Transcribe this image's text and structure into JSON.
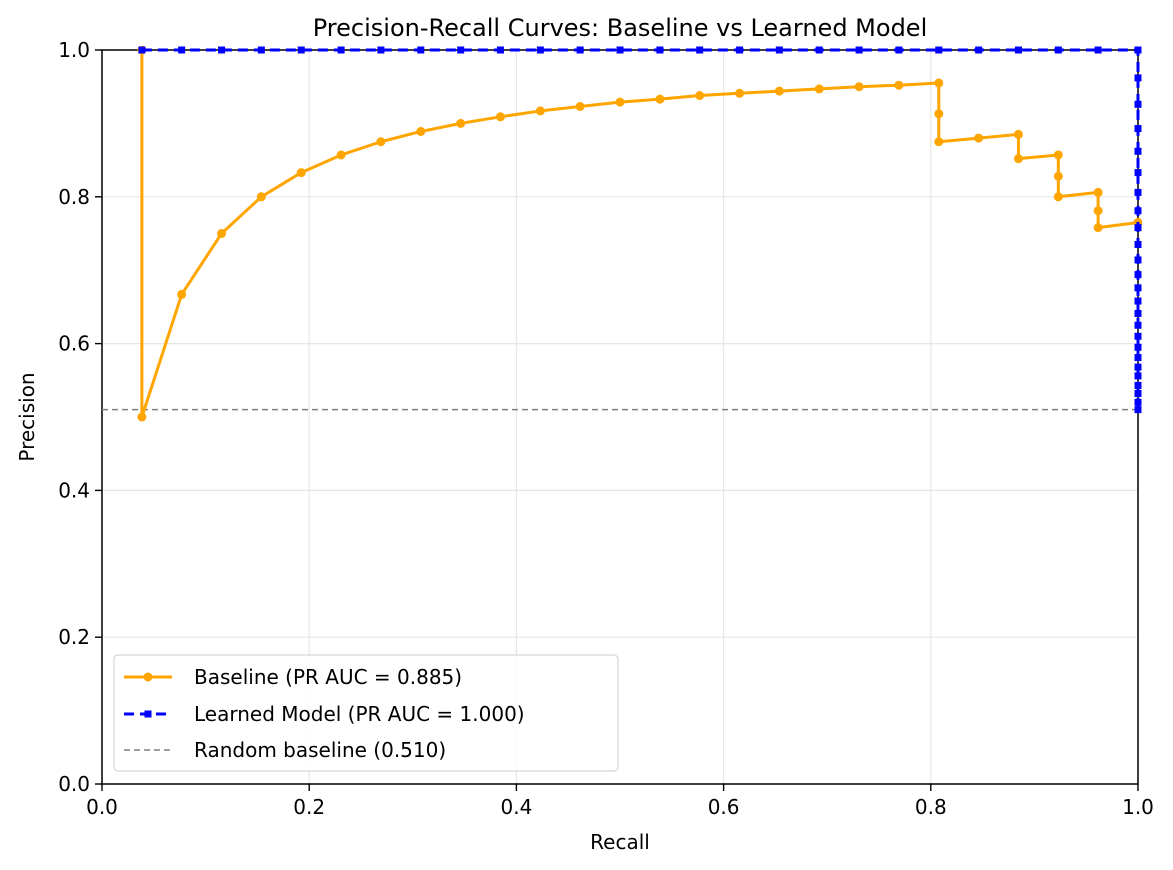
{
  "chart_data": {
    "type": "line",
    "title": "Precision-Recall Curves: Baseline vs Learned Model",
    "xlabel": "Recall",
    "ylabel": "Precision",
    "xlim": [
      0.0,
      1.0
    ],
    "ylim": [
      0.0,
      1.0
    ],
    "x_ticks": [
      "0.0",
      "0.2",
      "0.4",
      "0.6",
      "0.8",
      "1.0"
    ],
    "y_ticks": [
      "0.0",
      "0.2",
      "0.4",
      "0.6",
      "0.8",
      "1.0"
    ],
    "grid": true,
    "legend_position": "lower-left",
    "series": [
      {
        "name": "Baseline (PR AUC = 0.885)",
        "color": "#FFA500",
        "marker": "circle",
        "line_style": "solid",
        "points": [
          [
            0.0385,
            1.0
          ],
          [
            0.0385,
            0.5
          ],
          [
            0.0769,
            0.667
          ],
          [
            0.1154,
            0.75
          ],
          [
            0.1538,
            0.8
          ],
          [
            0.1923,
            0.833
          ],
          [
            0.2308,
            0.857
          ],
          [
            0.2692,
            0.875
          ],
          [
            0.3077,
            0.889
          ],
          [
            0.3462,
            0.9
          ],
          [
            0.3846,
            0.909
          ],
          [
            0.4231,
            0.917
          ],
          [
            0.4615,
            0.923
          ],
          [
            0.5,
            0.929
          ],
          [
            0.5385,
            0.933
          ],
          [
            0.5769,
            0.938
          ],
          [
            0.6154,
            0.941
          ],
          [
            0.6538,
            0.944
          ],
          [
            0.6923,
            0.947
          ],
          [
            0.7308,
            0.95
          ],
          [
            0.7692,
            0.952
          ],
          [
            0.8077,
            0.955
          ],
          [
            0.8077,
            0.913
          ],
          [
            0.8077,
            0.875
          ],
          [
            0.8462,
            0.88
          ],
          [
            0.8846,
            0.885
          ],
          [
            0.8846,
            0.852
          ],
          [
            0.9231,
            0.857
          ],
          [
            0.9231,
            0.828
          ],
          [
            0.9231,
            0.8
          ],
          [
            0.9615,
            0.806
          ],
          [
            0.9615,
            0.781
          ],
          [
            0.9615,
            0.758
          ],
          [
            1.0,
            0.765
          ]
        ]
      },
      {
        "name": "Learned Model (PR AUC = 1.000)",
        "color": "#0000FF",
        "marker": "square",
        "line_style": "dashed",
        "points": [
          [
            0.0385,
            1.0
          ],
          [
            0.0769,
            1.0
          ],
          [
            0.1154,
            1.0
          ],
          [
            0.1538,
            1.0
          ],
          [
            0.1923,
            1.0
          ],
          [
            0.2308,
            1.0
          ],
          [
            0.2692,
            1.0
          ],
          [
            0.3077,
            1.0
          ],
          [
            0.3462,
            1.0
          ],
          [
            0.3846,
            1.0
          ],
          [
            0.4231,
            1.0
          ],
          [
            0.4615,
            1.0
          ],
          [
            0.5,
            1.0
          ],
          [
            0.5385,
            1.0
          ],
          [
            0.5769,
            1.0
          ],
          [
            0.6154,
            1.0
          ],
          [
            0.6538,
            1.0
          ],
          [
            0.6923,
            1.0
          ],
          [
            0.7308,
            1.0
          ],
          [
            0.7692,
            1.0
          ],
          [
            0.8077,
            1.0
          ],
          [
            0.8462,
            1.0
          ],
          [
            0.8846,
            1.0
          ],
          [
            0.9231,
            1.0
          ],
          [
            0.9615,
            1.0
          ],
          [
            1.0,
            1.0
          ],
          [
            1.0,
            0.962
          ],
          [
            1.0,
            0.926
          ],
          [
            1.0,
            0.893
          ],
          [
            1.0,
            0.862
          ],
          [
            1.0,
            0.833
          ],
          [
            1.0,
            0.806
          ],
          [
            1.0,
            0.781
          ],
          [
            1.0,
            0.758
          ],
          [
            1.0,
            0.735
          ],
          [
            1.0,
            0.714
          ],
          [
            1.0,
            0.694
          ],
          [
            1.0,
            0.676
          ],
          [
            1.0,
            0.658
          ],
          [
            1.0,
            0.641
          ],
          [
            1.0,
            0.625
          ],
          [
            1.0,
            0.61
          ],
          [
            1.0,
            0.595
          ],
          [
            1.0,
            0.581
          ],
          [
            1.0,
            0.568
          ],
          [
            1.0,
            0.556
          ],
          [
            1.0,
            0.543
          ],
          [
            1.0,
            0.532
          ],
          [
            1.0,
            0.52
          ],
          [
            1.0,
            0.51
          ]
        ]
      },
      {
        "name": "Random baseline (0.510)",
        "color": "#808080",
        "marker": "none",
        "line_style": "dashed",
        "points": [
          [
            0.0,
            0.51
          ],
          [
            1.0,
            0.51
          ]
        ]
      }
    ]
  }
}
